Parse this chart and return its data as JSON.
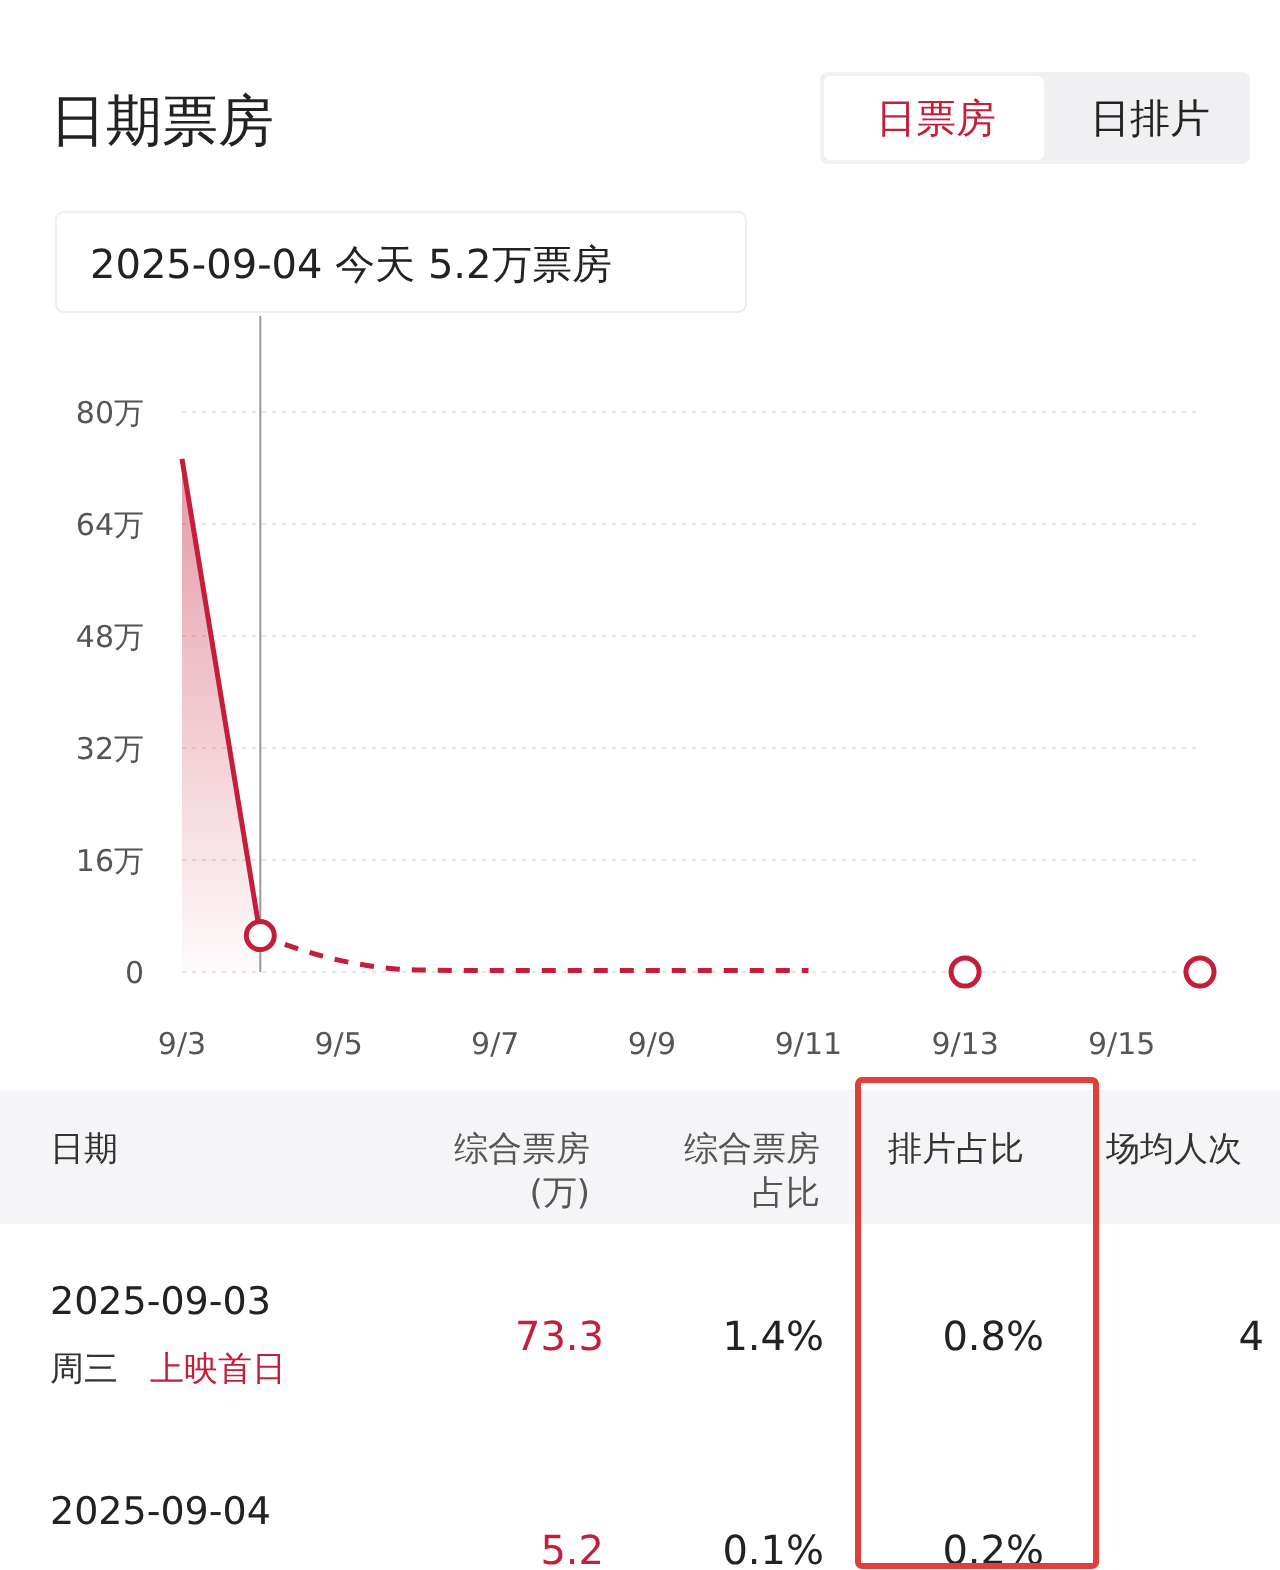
{
  "chart_data": {
    "type": "line",
    "title": "日期票房",
    "x": [
      "2025-09-03",
      "2025-09-04"
    ],
    "xlim": [
      "2025-09-03",
      "2025-09-16"
    ],
    "xticks": [
      {
        "value": "2025-09-03",
        "label": "9/3"
      },
      {
        "value": "2025-09-05",
        "label": "9/5"
      },
      {
        "value": "2025-09-07",
        "label": "9/7"
      },
      {
        "value": "2025-09-09",
        "label": "9/9"
      },
      {
        "value": "2025-09-11",
        "label": "9/11"
      },
      {
        "value": "2025-09-13",
        "label": "9/13"
      },
      {
        "value": "2025-09-15",
        "label": "9/15"
      }
    ],
    "ylim": [
      0,
      80
    ],
    "yticks": [
      0,
      {
        "value": 16,
        "label": "16万"
      },
      {
        "value": 32,
        "label": "32万"
      },
      {
        "value": 48,
        "label": "48万"
      },
      {
        "value": 64,
        "label": "64万"
      },
      {
        "value": 80,
        "label": "80万"
      }
    ],
    "series": [
      {
        "type": "area",
        "color": "#c41e3a",
        "values": [
          73.3,
          5.2
        ],
        "line_style": "solid",
        "marker": "none"
      },
      {
        "color": "#c41e3a",
        "x": [
          "2025-09-04",
          "2025-09-05",
          "2025-09-06",
          "2025-09-07",
          "2025-09-08",
          "2025-09-09",
          "2025-09-10",
          "2025-09-11"
        ],
        "values": [
          5.2,
          1.7,
          0.3,
          0.2,
          0.2,
          0.2,
          0.2,
          0.2
        ],
        "line_style": "dashed",
        "marker": "none"
      },
      {
        "type": "scatter",
        "color": "#c41e3a",
        "x": [
          "2025-09-04",
          "2025-09-13",
          "2025-09-16"
        ],
        "values": [
          5.2,
          0,
          0
        ],
        "marker": "circle"
      }
    ],
    "ref_lines": [
      {
        "axis": "x",
        "value": "2025-09-04",
        "color": "#999999"
      }
    ],
    "grid": "y",
    "annotations": [
      "2025-09-04 今天 5.2万票房",
      "日票房",
      "日排片",
      "日期",
      "综合票房",
      "(万)",
      "综合票房",
      "占比",
      "排片占比",
      "场均人次",
      "2025-09-03",
      "周三",
      "上映首日",
      "73.3",
      "1.4%",
      "0.8%",
      "4",
      "2025-09-04",
      "5.2",
      "0.1%",
      "0.2%"
    ]
  }
}
